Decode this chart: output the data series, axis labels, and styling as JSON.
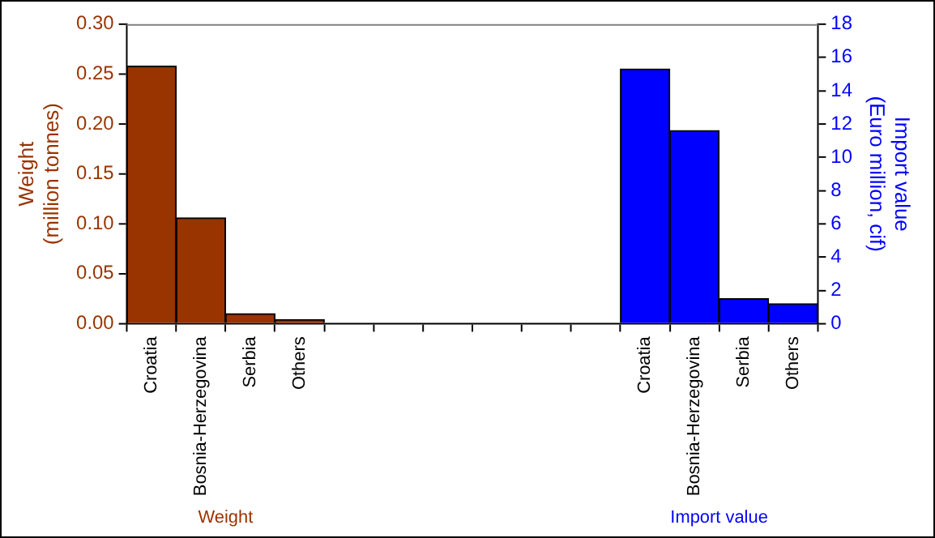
{
  "chart_data": {
    "type": "bar",
    "ylabel": "Weight\n(million tonnes)",
    "y2label": "Import value\n(Euro million, cif)",
    "categories": [
      "Croatia",
      "Bosnia-Herzegovina",
      "Serbia",
      "Others",
      null,
      null,
      null,
      null,
      null,
      null,
      "Croatia",
      "Bosnia-Herzegovina",
      "Serbia",
      "Others"
    ],
    "series": [
      {
        "name": "Weight",
        "color": "#993300",
        "values": [
          0.258,
          0.106,
          0.01,
          0.004,
          null,
          null,
          null,
          null,
          null,
          null,
          null,
          null,
          null,
          null
        ]
      },
      {
        "name": "Import value",
        "color": "#0000ff",
        "axis": "y2",
        "values": [
          null,
          null,
          null,
          null,
          null,
          null,
          null,
          null,
          null,
          null,
          15.3,
          11.6,
          1.5,
          1.2
        ]
      }
    ],
    "ylim": [
      0,
      0.3
    ],
    "yticks": [
      {
        "value": 0,
        "label": "0.00"
      },
      {
        "value": 0.05,
        "label": "0.05"
      },
      {
        "value": 0.1,
        "label": "0.10"
      },
      {
        "value": 0.15,
        "label": "0.15"
      },
      {
        "value": 0.2,
        "label": "0.20"
      },
      {
        "value": 0.25,
        "label": "0.25"
      },
      {
        "value": 0.3,
        "label": "0.30"
      }
    ],
    "y2lim": [
      0,
      18
    ],
    "y2ticks": [
      0,
      2,
      4,
      6,
      8,
      10,
      12,
      14,
      16,
      18
    ],
    "grid": false,
    "legend": false
  }
}
